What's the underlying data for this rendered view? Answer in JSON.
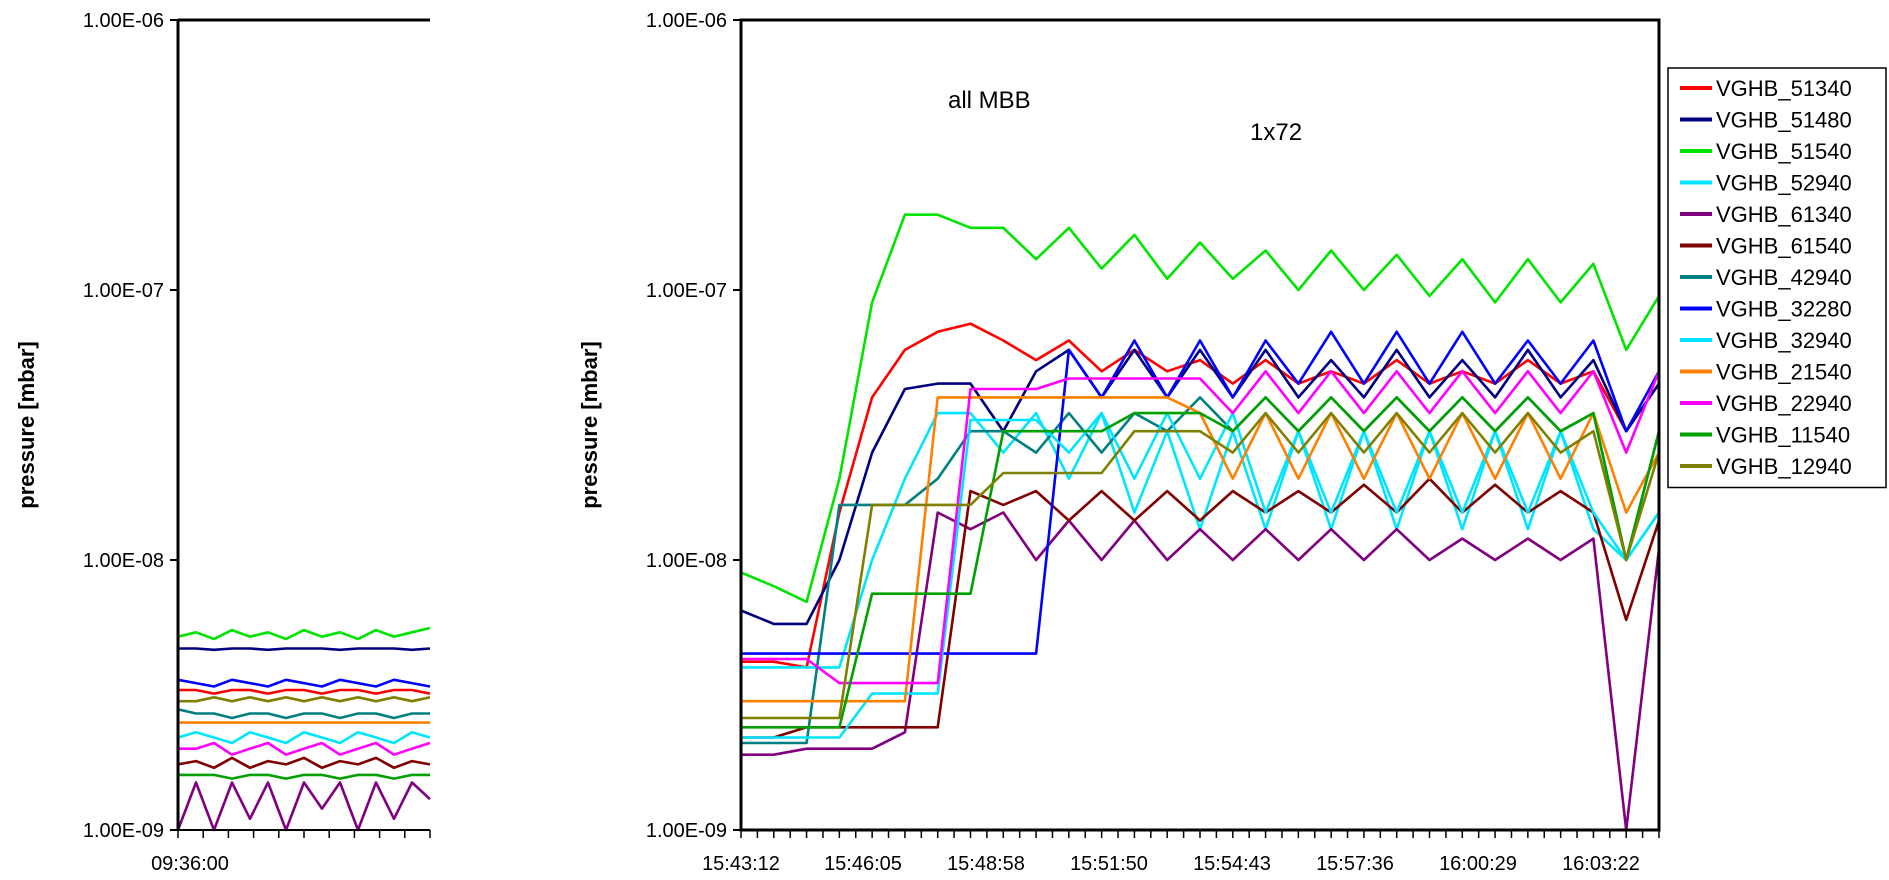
{
  "chart_data": [
    {
      "type": "line",
      "title": "",
      "xlabel": "",
      "ylabel": "pressure [mbar]",
      "yscale": "log",
      "ylim": [
        1e-09,
        1e-06
      ],
      "ytick_labels": [
        "1.00E-06",
        "1.00E-07",
        "1.00E-08",
        "1.00E-09"
      ],
      "xtick_labels": [
        "09:36:00"
      ],
      "grid": false,
      "series": [
        {
          "color": "#00e400",
          "y": [
            5.2e-09,
            5.4e-09,
            5.1e-09,
            5.5e-09,
            5.2e-09,
            5.4e-09,
            5.1e-09,
            5.5e-09,
            5.2e-09,
            5.4e-09,
            5.1e-09,
            5.5e-09,
            5.2e-09,
            5.4e-09,
            5.6e-09
          ]
        },
        {
          "color": "#000080",
          "y": [
            4.7e-09,
            4.7e-09,
            4.65e-09,
            4.7e-09,
            4.7e-09,
            4.65e-09,
            4.7e-09,
            4.7e-09,
            4.7e-09,
            4.65e-09,
            4.7e-09,
            4.7e-09,
            4.7e-09,
            4.65e-09,
            4.7e-09
          ]
        },
        {
          "color": "#0000ff",
          "y": [
            3.6e-09,
            3.5e-09,
            3.4e-09,
            3.6e-09,
            3.5e-09,
            3.4e-09,
            3.6e-09,
            3.5e-09,
            3.4e-09,
            3.6e-09,
            3.5e-09,
            3.4e-09,
            3.6e-09,
            3.5e-09,
            3.4e-09
          ]
        },
        {
          "color": "#ff0000",
          "y": [
            3.3e-09,
            3.3e-09,
            3.2e-09,
            3.3e-09,
            3.3e-09,
            3.2e-09,
            3.3e-09,
            3.3e-09,
            3.2e-09,
            3.3e-09,
            3.3e-09,
            3.2e-09,
            3.3e-09,
            3.3e-09,
            3.2e-09
          ]
        },
        {
          "color": "#808000",
          "y": [
            3e-09,
            3e-09,
            3.1e-09,
            3e-09,
            3.1e-09,
            3e-09,
            3.1e-09,
            3e-09,
            3.1e-09,
            3e-09,
            3.1e-09,
            3e-09,
            3.1e-09,
            3e-09,
            3.1e-09
          ]
        },
        {
          "color": "#008080",
          "y": [
            2.8e-09,
            2.7e-09,
            2.7e-09,
            2.6e-09,
            2.7e-09,
            2.7e-09,
            2.6e-09,
            2.7e-09,
            2.7e-09,
            2.6e-09,
            2.7e-09,
            2.7e-09,
            2.6e-09,
            2.7e-09,
            2.7e-09
          ]
        },
        {
          "color": "#ff8000",
          "y": [
            2.5e-09,
            2.5e-09,
            2.5e-09,
            2.5e-09,
            2.5e-09,
            2.5e-09,
            2.5e-09,
            2.5e-09,
            2.5e-09,
            2.5e-09,
            2.5e-09,
            2.5e-09,
            2.5e-09,
            2.5e-09,
            2.5e-09
          ]
        },
        {
          "color": "#00e5ff",
          "y": [
            2.2e-09,
            2.3e-09,
            2.2e-09,
            2.1e-09,
            2.3e-09,
            2.2e-09,
            2.1e-09,
            2.3e-09,
            2.2e-09,
            2.1e-09,
            2.3e-09,
            2.2e-09,
            2.1e-09,
            2.3e-09,
            2.2e-09
          ]
        },
        {
          "color": "#ff00ff",
          "y": [
            2e-09,
            2e-09,
            2.1e-09,
            1.9e-09,
            2e-09,
            2.1e-09,
            1.9e-09,
            2e-09,
            2.1e-09,
            1.9e-09,
            2e-09,
            2.1e-09,
            1.9e-09,
            2e-09,
            2.1e-09
          ]
        },
        {
          "color": "#800000",
          "y": [
            1.75e-09,
            1.8e-09,
            1.7e-09,
            1.85e-09,
            1.7e-09,
            1.8e-09,
            1.75e-09,
            1.85e-09,
            1.7e-09,
            1.8e-09,
            1.75e-09,
            1.85e-09,
            1.7e-09,
            1.8e-09,
            1.75e-09
          ]
        },
        {
          "color": "#00a000",
          "y": [
            1.6e-09,
            1.6e-09,
            1.6e-09,
            1.55e-09,
            1.6e-09,
            1.6e-09,
            1.55e-09,
            1.6e-09,
            1.6e-09,
            1.55e-09,
            1.6e-09,
            1.6e-09,
            1.55e-09,
            1.6e-09,
            1.6e-09
          ]
        },
        {
          "color": "#800080",
          "y": [
            1e-09,
            1.5e-09,
            1e-09,
            1.5e-09,
            1.1e-09,
            1.5e-09,
            1e-09,
            1.5e-09,
            1.2e-09,
            1.5e-09,
            1e-09,
            1.5e-09,
            1.1e-09,
            1.5e-09,
            1.3e-09
          ]
        }
      ]
    },
    {
      "type": "line",
      "title": "",
      "xlabel": "",
      "ylabel": "pressure [mbar]",
      "yscale": "log",
      "ylim": [
        1e-09,
        1e-06
      ],
      "ytick_labels": [
        "1.00E-06",
        "1.00E-07",
        "1.00E-08",
        "1.00E-09"
      ],
      "xtick_labels": [
        "15:43:12",
        "15:46:05",
        "15:48:58",
        "15:51:50",
        "15:54:43",
        "15:57:36",
        "16:00:29",
        "16:03:22"
      ],
      "grid": false,
      "legend_position": "right",
      "annotations": [
        "all MBB",
        "1x72"
      ],
      "series": [
        {
          "name": "VGHB_51340",
          "color": "#ff0000",
          "y": [
            4.2e-09,
            4.2e-09,
            4e-09,
            1.5e-08,
            4e-08,
            6e-08,
            7e-08,
            7.5e-08,
            6.5e-08,
            5.5e-08,
            6.5e-08,
            5e-08,
            6e-08,
            5e-08,
            5.5e-08,
            4.5e-08,
            5.5e-08,
            4.5e-08,
            5e-08,
            4.5e-08,
            5.5e-08,
            4.5e-08,
            5e-08,
            4.5e-08,
            5.5e-08,
            4.5e-08,
            5e-08,
            3e-08,
            4.5e-08
          ]
        },
        {
          "name": "VGHB_51480",
          "color": "#000080",
          "y": [
            6.5e-09,
            5.8e-09,
            5.8e-09,
            1e-08,
            2.5e-08,
            4.3e-08,
            4.5e-08,
            4.5e-08,
            3e-08,
            5e-08,
            6e-08,
            4e-08,
            6e-08,
            4e-08,
            6e-08,
            4e-08,
            6e-08,
            4e-08,
            5.5e-08,
            4e-08,
            6e-08,
            4e-08,
            5.5e-08,
            4e-08,
            6e-08,
            4e-08,
            5.5e-08,
            3e-08,
            4.5e-08
          ]
        },
        {
          "name": "VGHB_51540",
          "color": "#00e400",
          "y": [
            9e-09,
            8e-09,
            7e-09,
            2e-08,
            9e-08,
            1.9e-07,
            1.9e-07,
            1.7e-07,
            1.7e-07,
            1.3e-07,
            1.7e-07,
            1.2e-07,
            1.6e-07,
            1.1e-07,
            1.5e-07,
            1.1e-07,
            1.4e-07,
            1e-07,
            1.4e-07,
            1e-07,
            1.35e-07,
            9.5e-08,
            1.3e-07,
            9e-08,
            1.3e-07,
            9e-08,
            1.25e-07,
            6e-08,
            9.5e-08
          ]
        },
        {
          "name": "VGHB_52940",
          "color": "#00e5ff",
          "y": [
            4e-09,
            4e-09,
            4e-09,
            4e-09,
            1e-08,
            2e-08,
            3.5e-08,
            3.5e-08,
            2.5e-08,
            3.5e-08,
            2e-08,
            3.5e-08,
            1.5e-08,
            3e-08,
            1.3e-08,
            3e-08,
            1.3e-08,
            3e-08,
            1.3e-08,
            3e-08,
            1.3e-08,
            3e-08,
            1.3e-08,
            3e-08,
            1.3e-08,
            3e-08,
            1.3e-08,
            1e-08,
            1.5e-08
          ]
        },
        {
          "name": "VGHB_61340",
          "color": "#800080",
          "y": [
            1.9e-09,
            1.9e-09,
            2e-09,
            2e-09,
            2e-09,
            2.3e-09,
            1.5e-08,
            1.3e-08,
            1.5e-08,
            1e-08,
            1.4e-08,
            1e-08,
            1.4e-08,
            1e-08,
            1.3e-08,
            1e-08,
            1.3e-08,
            1e-08,
            1.3e-08,
            1e-08,
            1.3e-08,
            1e-08,
            1.2e-08,
            1e-08,
            1.2e-08,
            1e-08,
            1.2e-08,
            1e-09,
            1.1e-08
          ]
        },
        {
          "name": "VGHB_61540",
          "color": "#800000",
          "y": [
            2.2e-09,
            2.2e-09,
            2.4e-09,
            2.4e-09,
            2.4e-09,
            2.4e-09,
            2.4e-09,
            1.8e-08,
            1.6e-08,
            1.8e-08,
            1.4e-08,
            1.8e-08,
            1.4e-08,
            1.8e-08,
            1.4e-08,
            1.8e-08,
            1.5e-08,
            1.8e-08,
            1.5e-08,
            1.9e-08,
            1.5e-08,
            2e-08,
            1.5e-08,
            1.9e-08,
            1.5e-08,
            1.8e-08,
            1.5e-08,
            6e-09,
            1.4e-08
          ]
        },
        {
          "name": "VGHB_42940",
          "color": "#008080",
          "y": [
            2.1e-09,
            2.1e-09,
            2.1e-09,
            1.6e-08,
            1.6e-08,
            1.6e-08,
            2e-08,
            3e-08,
            3e-08,
            2.5e-08,
            3.5e-08,
            2.5e-08,
            3.5e-08,
            3e-08,
            4e-08,
            3e-08,
            4e-08,
            3e-08,
            4e-08,
            3e-08,
            4e-08,
            3e-08,
            4e-08,
            3e-08,
            4e-08,
            3e-08,
            3.5e-08,
            1e-08,
            3e-08
          ]
        },
        {
          "name": "VGHB_32280",
          "color": "#0000ff",
          "y": [
            4.5e-09,
            4.5e-09,
            4.5e-09,
            4.5e-09,
            4.5e-09,
            4.5e-09,
            4.5e-09,
            4.5e-09,
            4.5e-09,
            4.5e-09,
            6e-08,
            4e-08,
            6.5e-08,
            4e-08,
            6.5e-08,
            4e-08,
            6.5e-08,
            4.5e-08,
            7e-08,
            4.5e-08,
            7e-08,
            4.5e-08,
            7e-08,
            4.5e-08,
            6.5e-08,
            4.5e-08,
            6.5e-08,
            3e-08,
            5e-08
          ]
        },
        {
          "name": "VGHB_32940",
          "color": "#00e5ff",
          "y": [
            2.2e-09,
            2.2e-09,
            2.2e-09,
            2.2e-09,
            3.2e-09,
            3.2e-09,
            3.2e-09,
            3.3e-08,
            3.3e-08,
            3.3e-08,
            2.5e-08,
            3.5e-08,
            2e-08,
            3.5e-08,
            2e-08,
            3.5e-08,
            1.5e-08,
            3e-08,
            1.5e-08,
            3e-08,
            1.5e-08,
            3e-08,
            1.5e-08,
            3e-08,
            1.5e-08,
            3e-08,
            1.5e-08,
            1e-08,
            1.5e-08
          ]
        },
        {
          "name": "VGHB_21540",
          "color": "#ff8000",
          "y": [
            3e-09,
            3e-09,
            3e-09,
            3e-09,
            3e-09,
            3e-09,
            4e-08,
            4e-08,
            4e-08,
            4e-08,
            4e-08,
            4e-08,
            4e-08,
            4e-08,
            3.5e-08,
            2e-08,
            3.5e-08,
            2e-08,
            3.5e-08,
            2e-08,
            3.5e-08,
            2e-08,
            3.5e-08,
            2e-08,
            3.5e-08,
            2e-08,
            3.5e-08,
            1.5e-08,
            2.5e-08
          ]
        },
        {
          "name": "VGHB_22940",
          "color": "#ff00ff",
          "y": [
            4.3e-09,
            4.3e-09,
            4.3e-09,
            3.5e-09,
            3.5e-09,
            3.5e-09,
            3.5e-09,
            4.3e-08,
            4.3e-08,
            4.3e-08,
            4.7e-08,
            4.7e-08,
            4.7e-08,
            4.7e-08,
            4.7e-08,
            3.5e-08,
            5e-08,
            3.5e-08,
            5e-08,
            3.5e-08,
            5e-08,
            3.5e-08,
            5e-08,
            3.5e-08,
            5e-08,
            3.5e-08,
            5e-08,
            2.5e-08,
            5e-08
          ]
        },
        {
          "name": "VGHB_11540",
          "color": "#00a000",
          "y": [
            2.4e-09,
            2.4e-09,
            2.4e-09,
            2.4e-09,
            7.5e-09,
            7.5e-09,
            7.5e-09,
            7.5e-09,
            3e-08,
            3e-08,
            3e-08,
            3e-08,
            3.5e-08,
            3.5e-08,
            3.5e-08,
            3e-08,
            4e-08,
            3e-08,
            4e-08,
            3e-08,
            4e-08,
            3e-08,
            4e-08,
            3e-08,
            4e-08,
            3e-08,
            3.5e-08,
            1e-08,
            3e-08
          ]
        },
        {
          "name": "VGHB_12940",
          "color": "#808000",
          "y": [
            2.6e-09,
            2.6e-09,
            2.6e-09,
            2.6e-09,
            1.6e-08,
            1.6e-08,
            1.6e-08,
            1.6e-08,
            2.1e-08,
            2.1e-08,
            2.1e-08,
            2.1e-08,
            3e-08,
            3e-08,
            3e-08,
            2.5e-08,
            3.5e-08,
            2.5e-08,
            3.5e-08,
            2.5e-08,
            3.5e-08,
            2.5e-08,
            3.5e-08,
            2.5e-08,
            3.5e-08,
            2.5e-08,
            3e-08,
            1e-08,
            2.5e-08
          ]
        }
      ]
    }
  ]
}
